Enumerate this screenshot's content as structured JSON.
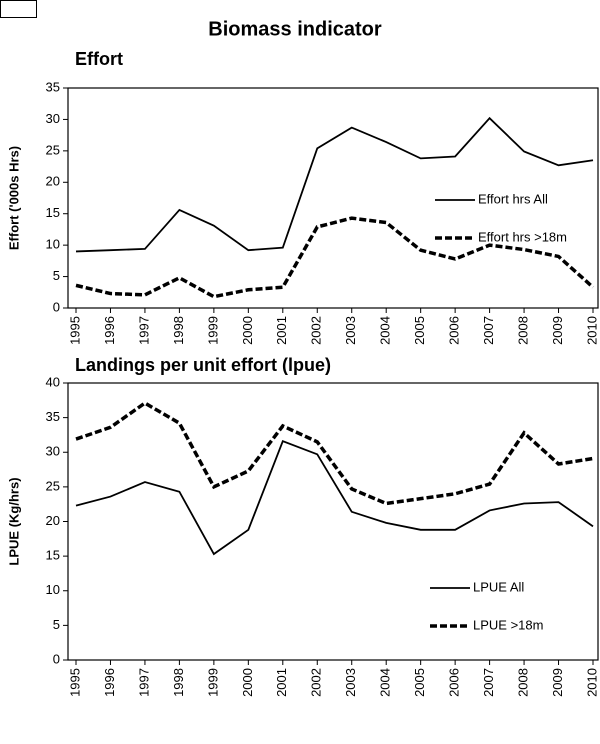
{
  "title": "Biomass indicator",
  "chart_data": [
    {
      "type": "line",
      "title": "Effort",
      "y_label": "Effort ('000s  Hrs)",
      "categories": [
        "1995",
        "1996",
        "1997",
        "1998",
        "1999",
        "2000",
        "2001",
        "2002",
        "2003",
        "2004",
        "2005",
        "2006",
        "2007",
        "2008",
        "2009",
        "2010"
      ],
      "series": [
        {
          "name": "Effort hrs All",
          "color": "#000000",
          "style": "solid",
          "values": [
            9.0,
            9.2,
            9.4,
            15.6,
            13.1,
            9.2,
            9.6,
            25.4,
            28.7,
            26.4,
            23.8,
            24.1,
            30.2,
            24.9,
            22.7,
            23.5
          ]
        },
        {
          "name": "Effort hrs >18m",
          "color": "#000000",
          "style": "dashed",
          "values": [
            3.6,
            2.3,
            2.1,
            4.8,
            1.8,
            2.9,
            3.3,
            12.9,
            14.3,
            13.6,
            9.2,
            7.8,
            10.0,
            9.3,
            8.2,
            3.3
          ]
        }
      ],
      "ylim": [
        0,
        35
      ],
      "yticks": [
        0,
        5,
        10,
        15,
        20,
        25,
        30,
        35
      ],
      "legend": "right"
    },
    {
      "type": "line",
      "title": "Landings per unit effort (lpue)",
      "y_label": "LPUE (Kg/hrs)",
      "categories": [
        "1995",
        "1996",
        "1997",
        "1998",
        "1999",
        "2000",
        "2001",
        "2002",
        "2003",
        "2004",
        "2005",
        "2006",
        "2007",
        "2008",
        "2009",
        "2010"
      ],
      "series": [
        {
          "name": "LPUE All",
          "color": "#000000",
          "style": "solid",
          "values": [
            22.3,
            23.6,
            25.7,
            24.3,
            15.3,
            18.8,
            31.6,
            29.7,
            21.4,
            19.8,
            18.8,
            18.8,
            21.6,
            22.6,
            22.8,
            19.3
          ]
        },
        {
          "name": "LPUE >18m",
          "color": "#000000",
          "style": "dashed",
          "values": [
            31.9,
            33.6,
            37.1,
            34.2,
            25.0,
            27.3,
            33.8,
            31.5,
            24.7,
            22.6,
            23.3,
            24.0,
            25.4,
            32.8,
            28.3,
            29.1
          ]
        }
      ],
      "ylim": [
        0,
        40
      ],
      "yticks": [
        0,
        5,
        10,
        15,
        20,
        25,
        30,
        35,
        40
      ],
      "legend": "lower right"
    }
  ]
}
